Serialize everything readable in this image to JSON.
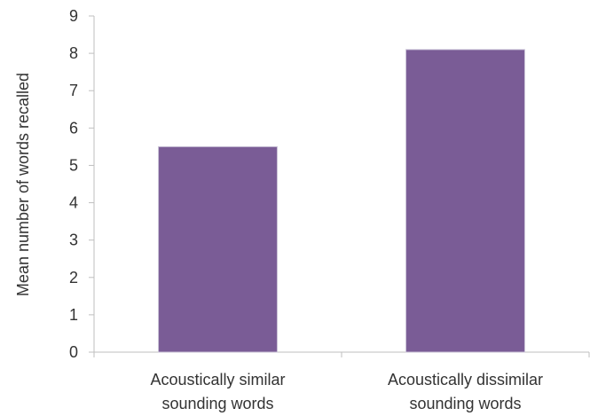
{
  "chart_data": {
    "type": "bar",
    "categories": [
      [
        "Acoustically similar",
        "sounding words"
      ],
      [
        "Acoustically dissimilar",
        "sounding words"
      ]
    ],
    "values": [
      5.5,
      8.1
    ],
    "title": "",
    "xlabel": "",
    "ylabel": "Mean number of words recalled",
    "ylim": [
      0,
      9
    ],
    "yticks": [
      0,
      1,
      2,
      3,
      4,
      5,
      6,
      7,
      8,
      9
    ],
    "grid": false,
    "legend": "none",
    "bar_color": "#7a5c96"
  }
}
